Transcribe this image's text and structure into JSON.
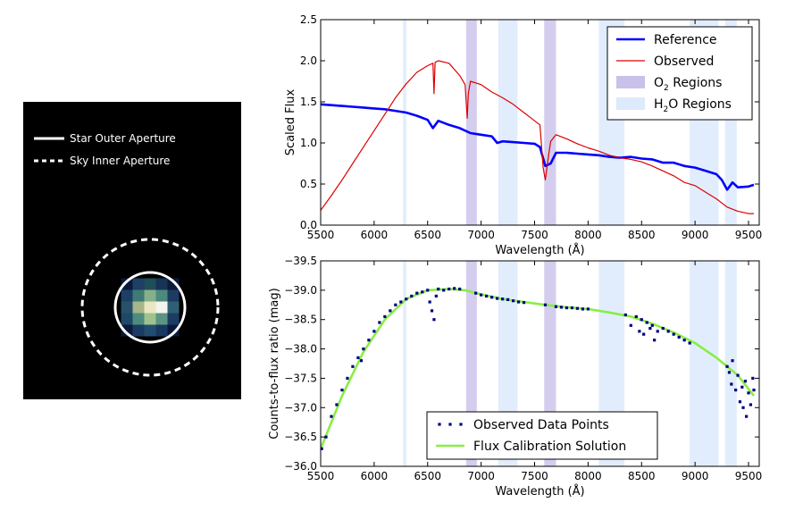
{
  "image_panel": {
    "legend": [
      {
        "label": "Star Outer Aperture",
        "style": "solid"
      },
      {
        "label": "Sky Inner Aperture",
        "style": "dashed"
      }
    ],
    "pixel_grid": [
      [
        "#0b1a3a",
        "#1f3f64",
        "#204d5a",
        "#173457",
        "#0c1b3a"
      ],
      [
        "#1d3f66",
        "#3f7b74",
        "#86b08a",
        "#4c8a7d",
        "#1d3a62"
      ],
      [
        "#27506a",
        "#a8b48a",
        "#e9e6c2",
        "#f4f4ee",
        "#2f5f73"
      ],
      [
        "#1e4768",
        "#4d8c7d",
        "#9fc28f",
        "#5a9482",
        "#1c3c64"
      ],
      [
        "#0b1a3a",
        "#1a3c64",
        "#214e70",
        "#183860",
        "#0b1a3a"
      ]
    ]
  },
  "chart_data": [
    {
      "type": "line",
      "xlabel": "Wavelength (Å)",
      "ylabel": "Scaled Flux",
      "xlim": [
        5500,
        9600
      ],
      "ylim": [
        0.0,
        2.5
      ],
      "x_ticks": [
        "5500",
        "6000",
        "6500",
        "7000",
        "7500",
        "8000",
        "8500",
        "9000",
        "9500"
      ],
      "y_ticks": [
        "0.0",
        "0.5",
        "1.0",
        "1.5",
        "2.0",
        "2.5"
      ],
      "legend_position": "top-right",
      "legend": [
        {
          "label": "Reference",
          "color": "#0000ff",
          "kind": "line"
        },
        {
          "label": "Observed",
          "color": "#dd0000",
          "kind": "line"
        },
        {
          "label": "O",
          "sub": "2",
          "suffix": " Regions",
          "color": "#c9c1ea",
          "kind": "band"
        },
        {
          "label": "H",
          "sub": "2",
          "suffix": "O Regions",
          "color": "#dceafb",
          "kind": "band"
        }
      ],
      "series": [
        {
          "name": "Reference",
          "color": "#0000ff",
          "x": [
            5500,
            5600,
            5700,
            5800,
            5900,
            6000,
            6100,
            6200,
            6300,
            6400,
            6500,
            6550,
            6600,
            6700,
            6800,
            6900,
            7000,
            7100,
            7150,
            7200,
            7300,
            7400,
            7500,
            7550,
            7600,
            7650,
            7700,
            7800,
            7900,
            8000,
            8100,
            8200,
            8300,
            8400,
            8500,
            8600,
            8700,
            8800,
            8900,
            9000,
            9100,
            9200,
            9250,
            9300,
            9350,
            9400,
            9500,
            9550
          ],
          "y": [
            1.47,
            1.46,
            1.45,
            1.44,
            1.43,
            1.42,
            1.41,
            1.39,
            1.37,
            1.33,
            1.28,
            1.18,
            1.27,
            1.22,
            1.18,
            1.12,
            1.1,
            1.08,
            1.0,
            1.02,
            1.01,
            1.0,
            0.99,
            0.95,
            0.72,
            0.75,
            0.88,
            0.88,
            0.87,
            0.86,
            0.85,
            0.83,
            0.82,
            0.83,
            0.81,
            0.8,
            0.76,
            0.76,
            0.72,
            0.7,
            0.66,
            0.62,
            0.55,
            0.43,
            0.52,
            0.46,
            0.47,
            0.49
          ]
        },
        {
          "name": "Observed",
          "color": "#dd0000",
          "x": [
            5500,
            5600,
            5700,
            5800,
            5900,
            6000,
            6100,
            6200,
            6300,
            6400,
            6500,
            6550,
            6560,
            6570,
            6600,
            6700,
            6800,
            6850,
            6870,
            6880,
            6900,
            7000,
            7100,
            7200,
            7300,
            7400,
            7500,
            7550,
            7580,
            7600,
            7620,
            7650,
            7700,
            7800,
            7900,
            8000,
            8100,
            8200,
            8300,
            8400,
            8500,
            8600,
            8700,
            8800,
            8900,
            9000,
            9100,
            9200,
            9300,
            9400,
            9500,
            9550
          ],
          "y": [
            0.18,
            0.36,
            0.55,
            0.75,
            0.95,
            1.15,
            1.35,
            1.55,
            1.72,
            1.86,
            1.94,
            1.97,
            1.6,
            1.98,
            2.0,
            1.97,
            1.82,
            1.71,
            1.3,
            1.6,
            1.75,
            1.71,
            1.62,
            1.55,
            1.47,
            1.37,
            1.27,
            1.22,
            0.7,
            0.55,
            0.75,
            1.02,
            1.1,
            1.05,
            0.99,
            0.94,
            0.9,
            0.85,
            0.82,
            0.8,
            0.77,
            0.72,
            0.66,
            0.6,
            0.52,
            0.48,
            0.4,
            0.32,
            0.22,
            0.17,
            0.14,
            0.14
          ]
        }
      ]
    },
    {
      "type": "scatter",
      "xlabel": "Wavelength (Å)",
      "ylabel": "Counts-to-flux ratio (mag)",
      "xlim": [
        5500,
        9600
      ],
      "ylim": [
        -36.0,
        -39.5
      ],
      "x_ticks": [
        "5500",
        "6000",
        "6500",
        "7000",
        "7500",
        "8000",
        "8500",
        "9000",
        "9500"
      ],
      "y_ticks": [
        "−39.5",
        "−39.0",
        "−38.5",
        "−38.0",
        "−37.5",
        "−37.0",
        "−36.5",
        "−36.0"
      ],
      "legend_position": "lower-center",
      "legend": [
        {
          "label": "Observed Data Points",
          "color": "#000080",
          "kind": "points"
        },
        {
          "label": "Flux Calibration Solution",
          "color": "#88ee44",
          "kind": "line"
        }
      ],
      "series": [
        {
          "name": "Flux Calibration Solution",
          "color": "#88ee44",
          "x": [
            5500,
            5700,
            5900,
            6100,
            6300,
            6500,
            6700,
            6850,
            7000,
            7200,
            7400,
            7600,
            7800,
            8000,
            8200,
            8400,
            8600,
            8800,
            9000,
            9200,
            9400,
            9550
          ],
          "y": [
            -36.3,
            -37.2,
            -37.95,
            -38.5,
            -38.85,
            -39.0,
            -39.02,
            -39.0,
            -38.93,
            -38.85,
            -38.8,
            -38.75,
            -38.71,
            -38.68,
            -38.62,
            -38.55,
            -38.43,
            -38.28,
            -38.1,
            -37.85,
            -37.55,
            -37.2
          ]
        },
        {
          "name": "Observed Data Points",
          "color": "#000080",
          "x": [
            5510,
            5550,
            5600,
            5650,
            5700,
            5750,
            5800,
            5850,
            5880,
            5900,
            5950,
            6000,
            6050,
            6100,
            6150,
            6200,
            6250,
            6300,
            6350,
            6400,
            6450,
            6500,
            6520,
            6540,
            6560,
            6580,
            6600,
            6650,
            6700,
            6750,
            6800,
            6950,
            7000,
            7050,
            7100,
            7150,
            7200,
            7250,
            7300,
            7350,
            7400,
            7600,
            7700,
            7750,
            7800,
            7850,
            7900,
            7950,
            8000,
            8350,
            8400,
            8450,
            8480,
            8500,
            8520,
            8550,
            8580,
            8600,
            8620,
            8650,
            8700,
            8750,
            8800,
            8850,
            8900,
            8950,
            9300,
            9320,
            9340,
            9350,
            9380,
            9400,
            9420,
            9440,
            9450,
            9470,
            9480,
            9500,
            9520,
            9540,
            9550
          ],
          "y": [
            -36.3,
            -36.5,
            -36.85,
            -37.05,
            -37.3,
            -37.5,
            -37.7,
            -37.85,
            -37.8,
            -38.0,
            -38.15,
            -38.3,
            -38.45,
            -38.55,
            -38.65,
            -38.75,
            -38.8,
            -38.85,
            -38.9,
            -38.95,
            -38.97,
            -39.0,
            -38.8,
            -38.65,
            -38.5,
            -38.9,
            -39.02,
            -39.0,
            -39.02,
            -39.03,
            -39.02,
            -38.95,
            -38.92,
            -38.9,
            -38.88,
            -38.86,
            -38.85,
            -38.84,
            -38.82,
            -38.8,
            -38.79,
            -38.75,
            -38.72,
            -38.71,
            -38.7,
            -38.7,
            -38.69,
            -38.68,
            -38.68,
            -38.58,
            -38.4,
            -38.55,
            -38.3,
            -38.5,
            -38.25,
            -38.45,
            -38.35,
            -38.4,
            -38.15,
            -38.3,
            -38.35,
            -38.3,
            -38.25,
            -38.2,
            -38.15,
            -38.1,
            -37.7,
            -37.6,
            -37.4,
            -37.8,
            -37.3,
            -37.55,
            -37.1,
            -37.35,
            -37.0,
            -37.45,
            -36.85,
            -37.25,
            -37.05,
            -37.5,
            -37.3
          ]
        }
      ]
    }
  ],
  "bands": {
    "o2": [
      [
        6860,
        6960
      ],
      [
        7590,
        7700
      ]
    ],
    "h2o": [
      [
        6270,
        6300
      ],
      [
        7160,
        7340
      ],
      [
        8100,
        8340
      ],
      [
        8950,
        9220
      ],
      [
        9280,
        9390
      ]
    ]
  }
}
